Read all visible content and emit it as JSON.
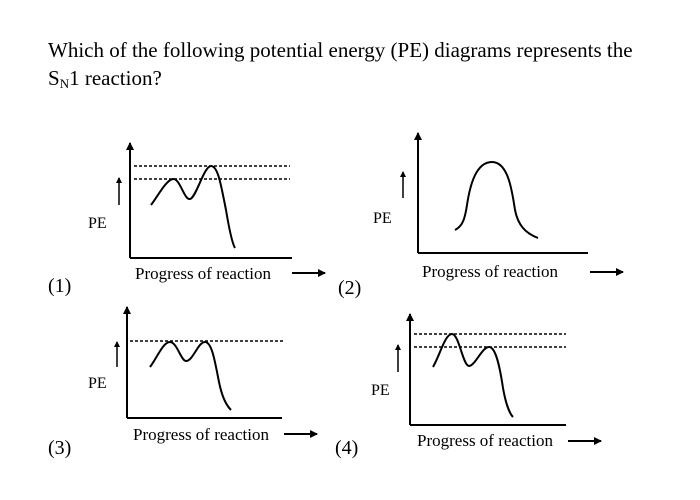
{
  "question": {
    "prefix": "Which of the following potential energy (PE) diagrams represents the S",
    "subscript": "N",
    "suffix": "1 reaction?"
  },
  "diagrams": [
    {
      "option": "(1)",
      "y_label": "PE",
      "x_label": "Progress of reaction",
      "curve": "two humps, second higher",
      "dashed_levels": 2
    },
    {
      "option": "(2)",
      "y_label": "PE",
      "x_label": "Progress of reaction",
      "curve": "single hump",
      "dashed_levels": 0
    },
    {
      "option": "(3)",
      "y_label": "PE",
      "x_label": "Progress of reaction",
      "curve": "two humps, equal height",
      "dashed_levels": 1
    },
    {
      "option": "(4)",
      "y_label": "PE",
      "x_label": "Progress of reaction",
      "curve": "two humps, first higher",
      "dashed_levels": 2
    }
  ]
}
